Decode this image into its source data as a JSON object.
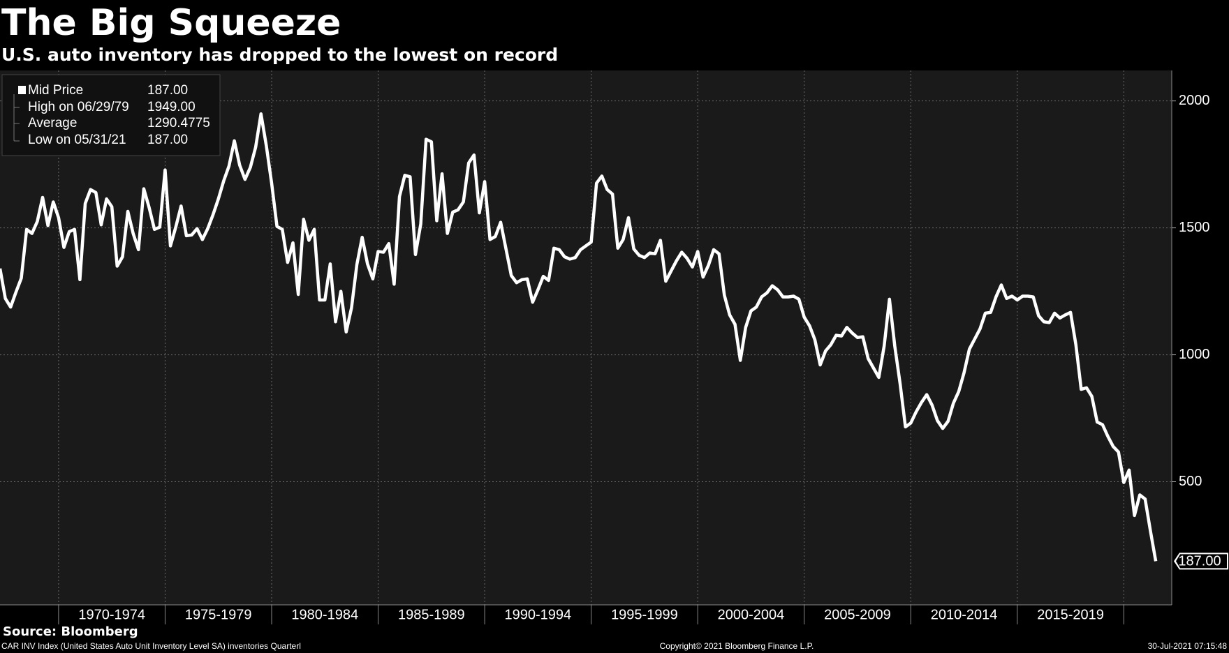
{
  "chart_data": {
    "type": "line",
    "title": "The Big Squeeze",
    "subtitle": "U.S. auto inventory has dropped to the lowest on record",
    "source": "Source: Bloomberg",
    "footer_left": "CAR INV Index (United States Auto Unit Inventory Level SA) inventories  Quarterl",
    "footer_center": "Copyright© 2021 Bloomberg Finance L.P.",
    "footer_right": "30-Jul-2021 07:15:48",
    "legend_stats": [
      {
        "value": "187.00"
      },
      {
        "label": "High on 06/29/79",
        "value": "1949.00"
      },
      {
        "label": "Average",
        "value": "1290.4775"
      },
      {
        "label": "Low on 05/31/21",
        "value": "187.00"
      }
    ],
    "x": [
      1967.25,
      1967.5,
      1967.75,
      1968,
      1968.25,
      1968.5,
      1968.75,
      1969,
      1969.25,
      1969.5,
      1969.75,
      1970,
      1970.25,
      1970.5,
      1970.75,
      1971,
      1971.25,
      1971.5,
      1971.75,
      1972,
      1972.25,
      1972.5,
      1972.75,
      1973,
      1973.25,
      1973.5,
      1973.75,
      1974,
      1974.25,
      1974.5,
      1974.75,
      1975,
      1975.25,
      1975.5,
      1975.75,
      1976,
      1976.25,
      1976.5,
      1976.75,
      1977,
      1977.25,
      1977.5,
      1977.75,
      1978,
      1978.25,
      1978.5,
      1978.75,
      1979,
      1979.25,
      1979.5,
      1979.75,
      1980,
      1980.25,
      1980.5,
      1980.75,
      1981,
      1981.25,
      1981.5,
      1981.75,
      1982,
      1982.25,
      1982.5,
      1982.75,
      1983,
      1983.25,
      1983.5,
      1983.75,
      1984,
      1984.25,
      1984.5,
      1984.75,
      1985,
      1985.25,
      1985.5,
      1985.75,
      1986,
      1986.25,
      1986.5,
      1986.75,
      1987,
      1987.25,
      1987.5,
      1987.75,
      1988,
      1988.25,
      1988.5,
      1988.75,
      1989,
      1989.25,
      1989.5,
      1989.75,
      1990,
      1990.25,
      1990.5,
      1990.75,
      1991,
      1991.25,
      1991.5,
      1991.75,
      1992,
      1992.25,
      1992.5,
      1992.75,
      1993,
      1993.25,
      1993.5,
      1993.75,
      1994,
      1994.25,
      1994.5,
      1994.75,
      1995,
      1995.25,
      1995.5,
      1995.75,
      1996,
      1996.25,
      1996.5,
      1996.75,
      1997,
      1997.25,
      1997.5,
      1997.75,
      1998,
      1998.25,
      1998.5,
      1998.75,
      1999,
      1999.25,
      1999.5,
      1999.75,
      2000,
      2000.25,
      2000.5,
      2000.75,
      2001,
      2001.25,
      2001.5,
      2001.75,
      2002,
      2002.25,
      2002.5,
      2002.75,
      2003,
      2003.25,
      2003.5,
      2003.75,
      2004,
      2004.25,
      2004.5,
      2004.75,
      2005,
      2005.25,
      2005.5,
      2005.75,
      2006,
      2006.25,
      2006.5,
      2006.75,
      2007,
      2007.25,
      2007.5,
      2007.75,
      2008,
      2008.25,
      2008.5,
      2008.75,
      2009,
      2009.25,
      2009.5,
      2009.75,
      2010,
      2010.25,
      2010.5,
      2010.75,
      2011,
      2011.25,
      2011.5,
      2011.75,
      2012,
      2012.25,
      2012.5,
      2012.75,
      2013,
      2013.25,
      2013.5,
      2013.75,
      2014,
      2014.25,
      2014.5,
      2014.75,
      2015,
      2015.25,
      2015.5,
      2015.75,
      2016,
      2016.25,
      2016.5,
      2016.75,
      2017,
      2017.25,
      2017.5,
      2017.75,
      2018,
      2018.25,
      2018.5,
      2018.75,
      2019,
      2019.25,
      2019.5,
      2019.75,
      2020,
      2020.25,
      2020.5,
      2020.75,
      2021,
      2021.25,
      2021.5
    ],
    "series": [
      {
        "name": "Mid Price",
        "color": "#ffffff",
        "values": [
          1340,
          1222,
          1188,
          1247,
          1302,
          1494,
          1478,
          1525,
          1620,
          1509,
          1602,
          1540,
          1423,
          1485,
          1494,
          1296,
          1596,
          1651,
          1639,
          1512,
          1614,
          1583,
          1349,
          1386,
          1565,
          1478,
          1414,
          1654,
          1580,
          1494,
          1503,
          1728,
          1429,
          1503,
          1586,
          1469,
          1472,
          1497,
          1454,
          1497,
          1552,
          1614,
          1685,
          1744,
          1843,
          1747,
          1691,
          1738,
          1818,
          1949,
          1824,
          1676,
          1506,
          1494,
          1364,
          1441,
          1238,
          1534,
          1451,
          1494,
          1216,
          1216,
          1358,
          1130,
          1250,
          1090,
          1185,
          1355,
          1463,
          1358,
          1299,
          1407,
          1404,
          1438,
          1278,
          1623,
          1707,
          1701,
          1395,
          1515,
          1849,
          1839,
          1528,
          1713,
          1478,
          1562,
          1571,
          1602,
          1756,
          1787,
          1559,
          1682,
          1454,
          1466,
          1522,
          1417,
          1312,
          1284,
          1296,
          1299,
          1207,
          1256,
          1309,
          1293,
          1420,
          1414,
          1386,
          1377,
          1383,
          1414,
          1429,
          1444,
          1676,
          1704,
          1651,
          1633,
          1420,
          1454,
          1540,
          1417,
          1392,
          1383,
          1401,
          1398,
          1451,
          1290,
          1330,
          1370,
          1404,
          1380,
          1346,
          1407,
          1306,
          1352,
          1414,
          1398,
          1235,
          1157,
          1120,
          978,
          1108,
          1173,
          1188,
          1228,
          1244,
          1272,
          1256,
          1228,
          1228,
          1231,
          1219,
          1148,
          1114,
          1059,
          960,
          1015,
          1040,
          1077,
          1074,
          1108,
          1086,
          1068,
          1071,
          985,
          948,
          911,
          1034,
          1219,
          1034,
          886,
          716,
          731,
          775,
          812,
          843,
          802,
          741,
          710,
          738,
          809,
          855,
          929,
          1022,
          1062,
          1102,
          1164,
          1167,
          1228,
          1275,
          1222,
          1231,
          1216,
          1231,
          1231,
          1228,
          1154,
          1130,
          1127,
          1164,
          1145,
          1157,
          1167,
          1040,
          864,
          870,
          836,
          735,
          725,
          679,
          639,
          617,
          497,
          546,
          367,
          448,
          432,
          306,
          187
        ]
      }
    ],
    "xlim": [
      1967.25,
      2022.25
    ],
    "xticks": [
      {
        "value": 1970,
        "label": "1970-1974"
      },
      {
        "value": 1975,
        "label": "1975-1979"
      },
      {
        "value": 1980,
        "label": "1980-1984"
      },
      {
        "value": 1985,
        "label": "1985-1989"
      },
      {
        "value": 1990,
        "label": "1990-1994"
      },
      {
        "value": 1995,
        "label": "1995-1999"
      },
      {
        "value": 2000,
        "label": "2000-2004"
      },
      {
        "value": 2005,
        "label": "2005-2009"
      },
      {
        "value": 2010,
        "label": "2010-2014"
      },
      {
        "value": 2015,
        "label": "2015-2019"
      },
      2020
    ],
    "ylim": [
      15,
      2120
    ],
    "yticks": [
      500,
      1000,
      1500,
      2000
    ],
    "grid": true
  }
}
